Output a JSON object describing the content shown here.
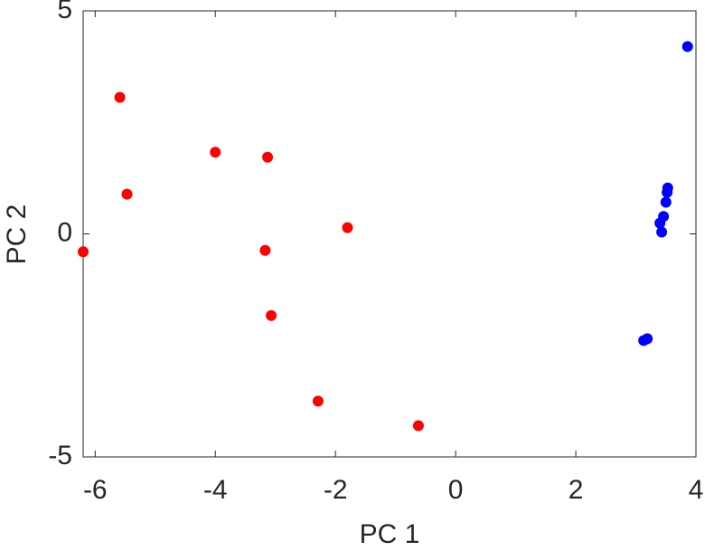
{
  "chart_data": {
    "type": "scatter",
    "xlabel": "PC 1",
    "ylabel": "PC 2",
    "xlim": [
      -6.2,
      4
    ],
    "ylim": [
      -5,
      5
    ],
    "xticks": [
      -6,
      -4,
      -2,
      0,
      2,
      4
    ],
    "yticks": [
      -5,
      0,
      5
    ],
    "series": [
      {
        "color": "#ff0000",
        "x": [
          -6.2,
          -5.59,
          -5.47,
          -4.0,
          -3.13,
          -3.17,
          -3.07,
          -1.8,
          -2.29,
          -0.62
        ],
        "values": [
          -0.4,
          3.06,
          0.89,
          1.83,
          1.72,
          -0.37,
          -1.83,
          0.14,
          -3.75,
          -4.3
        ]
      },
      {
        "color": "#0000ff",
        "x": [
          3.86,
          3.53,
          3.52,
          3.5,
          3.46,
          3.4,
          3.43,
          3.19,
          3.13
        ],
        "values": [
          4.2,
          1.03,
          0.93,
          0.71,
          0.39,
          0.24,
          0.04,
          -2.35,
          -2.39
        ]
      }
    ]
  }
}
